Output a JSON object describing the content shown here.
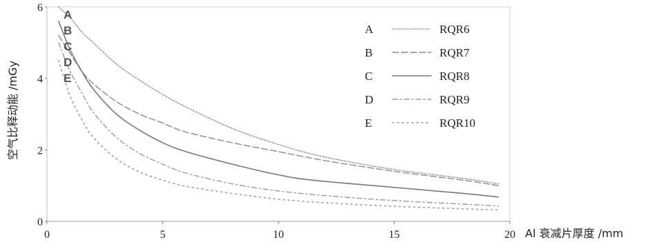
{
  "chart_data": {
    "type": "line",
    "title": "",
    "xlabel": "Al 衰减片厚度 /mm",
    "ylabel": "空气比释动能 /mGy",
    "xlim": [
      0,
      20
    ],
    "ylim": [
      0,
      6
    ],
    "x_ticks": [
      0,
      5,
      10,
      15,
      20
    ],
    "y_ticks": [
      0,
      2,
      4,
      6
    ],
    "legend_position": "top-right",
    "series": [
      {
        "name": "RQR6",
        "letter": "A",
        "color": "#9a9a9a",
        "dash": "1.5,2.5",
        "width": 1.6,
        "x": [
          0.5,
          1,
          1.5,
          2,
          3,
          4,
          5,
          6,
          8,
          10,
          12,
          15,
          18,
          19.5
        ],
        "y": [
          6.0,
          5.7,
          5.3,
          5.0,
          4.4,
          3.95,
          3.55,
          3.2,
          2.6,
          2.15,
          1.8,
          1.45,
          1.2,
          1.05
        ]
      },
      {
        "name": "RQR7",
        "letter": "B",
        "color": "#8a8a8a",
        "dash": "9,4",
        "width": 1.4,
        "x": [
          0.5,
          1,
          1.5,
          2,
          3,
          4,
          5,
          6,
          8,
          10,
          12,
          15,
          18,
          19.5
        ],
        "y": [
          5.2,
          4.7,
          4.2,
          3.85,
          3.35,
          3.0,
          2.75,
          2.5,
          2.2,
          1.95,
          1.7,
          1.4,
          1.15,
          1.0
        ]
      },
      {
        "name": "RQR8",
        "letter": "C",
        "color": "#777777",
        "dash": "",
        "width": 1.6,
        "x": [
          0.5,
          1,
          1.5,
          2,
          3,
          4,
          5,
          6,
          8,
          10,
          11.5,
          15,
          18,
          19.5
        ],
        "y": [
          5.6,
          4.8,
          4.2,
          3.7,
          3.0,
          2.55,
          2.2,
          1.95,
          1.6,
          1.3,
          1.15,
          0.95,
          0.78,
          0.68
        ]
      },
      {
        "name": "RQR9",
        "letter": "D",
        "color": "#9a9a9a",
        "dash": "7,4,2,4",
        "width": 1.4,
        "x": [
          0.5,
          1,
          1.5,
          2,
          3,
          4,
          5,
          6,
          8,
          10,
          12,
          15,
          18,
          19.5
        ],
        "y": [
          5.0,
          4.2,
          3.6,
          3.05,
          2.35,
          1.9,
          1.6,
          1.35,
          1.05,
          0.85,
          0.72,
          0.58,
          0.48,
          0.43
        ]
      },
      {
        "name": "RQR10",
        "letter": "E",
        "color": "#a8a8a8",
        "dash": "2,5",
        "width": 1.8,
        "x": [
          0.5,
          1,
          1.5,
          2,
          3,
          4,
          5,
          6,
          8,
          10,
          12,
          15,
          18,
          19.5
        ],
        "y": [
          4.5,
          3.5,
          2.85,
          2.35,
          1.75,
          1.38,
          1.15,
          0.98,
          0.78,
          0.62,
          0.52,
          0.42,
          0.35,
          0.32
        ]
      }
    ]
  }
}
